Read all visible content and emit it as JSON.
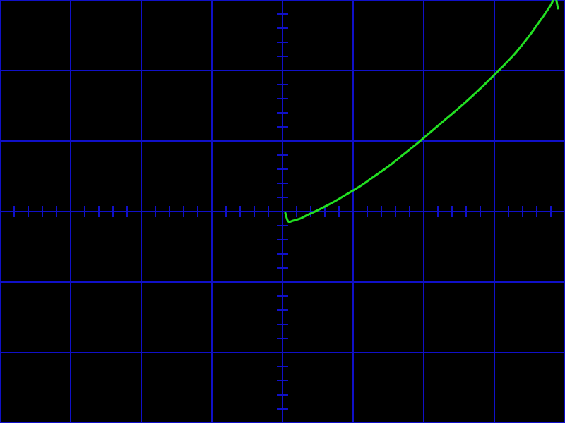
{
  "chart_data": {
    "type": "line",
    "title": "",
    "xlabel": "",
    "ylabel": "",
    "xlim": [
      -4,
      4
    ],
    "ylim": [
      -3,
      3
    ],
    "grid": true,
    "grid_divisions": {
      "x": 8,
      "y": 6
    },
    "minor_ticks_per_division": 5,
    "colors": {
      "background": "#000000",
      "grid": "#1010c8",
      "trace": "#22e022"
    },
    "series": [
      {
        "x": [
          0.04,
          0.08,
          0.15,
          0.25,
          0.35,
          0.46,
          0.6,
          0.75,
          0.9,
          1.1,
          1.3,
          1.5,
          1.7,
          1.9,
          2.1,
          2.3,
          2.5,
          2.7,
          2.9,
          3.1,
          3.3,
          3.5,
          3.6,
          3.7,
          3.8,
          3.86,
          3.9
        ],
        "y": [
          -0.02,
          -0.14,
          -0.13,
          -0.1,
          -0.05,
          0.0,
          0.07,
          0.15,
          0.24,
          0.36,
          0.5,
          0.64,
          0.8,
          0.96,
          1.13,
          1.3,
          1.47,
          1.65,
          1.84,
          2.04,
          2.25,
          2.5,
          2.64,
          2.78,
          2.93,
          3.04,
          2.88
        ]
      }
    ]
  }
}
